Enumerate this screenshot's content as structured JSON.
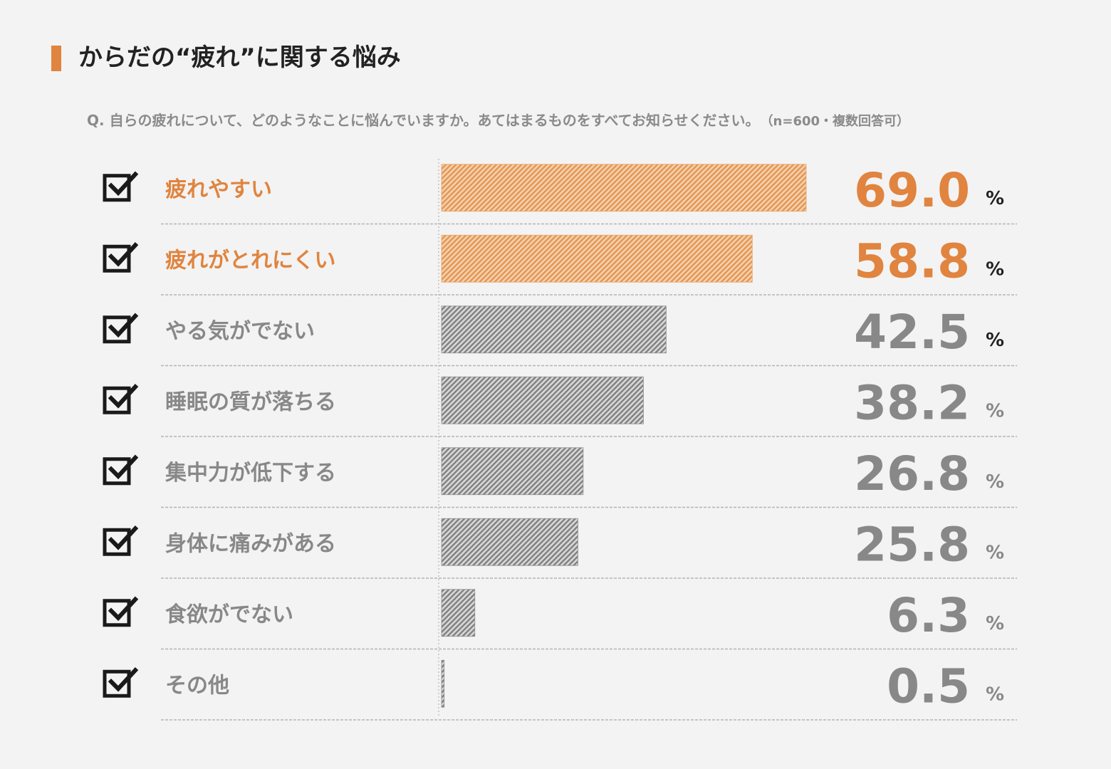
{
  "title": "からだの“疲れ”に関する悩み",
  "question": "Q. 自らの疲れについて、どのようなことに悩んでいますか。あてはまるものをすべてお知らせください。",
  "sample_note": "（n=600・複数回答可）",
  "colors": {
    "accent": "#e0843f",
    "accent_bar": "#e9a366",
    "gray_bar": "#8e8e8e",
    "gray_text": "#888888",
    "check": "#1a1a1a",
    "divider": "#b4b4b4",
    "background": "#f3f3f3"
  },
  "chart_data": {
    "type": "bar",
    "orientation": "horizontal",
    "unit": "%",
    "xlim": [
      0,
      100
    ],
    "highlight_count": 2,
    "categories": [
      "疲れやすい",
      "疲れがとれにくい",
      "やる気がでない",
      "睡眠の質が落ちる",
      "集中力が低下する",
      "身体に痛みがある",
      "食欲がでない",
      "その他"
    ],
    "values": [
      69.0,
      58.8,
      42.5,
      38.2,
      26.8,
      25.8,
      6.3,
      0.5
    ],
    "value_labels": [
      "69.0",
      "58.8",
      "42.5",
      "38.2",
      "26.8",
      "25.8",
      "6.3",
      "0.5"
    ],
    "title": "からだの“疲れ”に関する悩み"
  }
}
